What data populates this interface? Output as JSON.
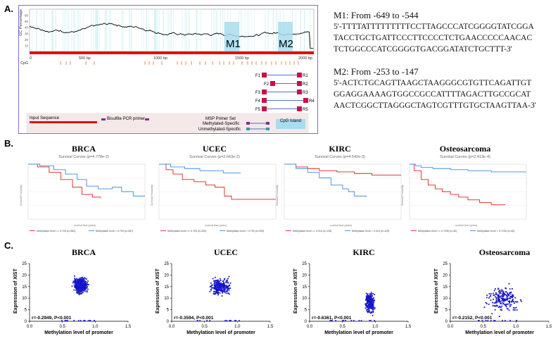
{
  "panelA": {
    "letter": "A.",
    "yaxis_label": "GC Percentage",
    "yticks": [
      "60",
      "50",
      "40",
      "30",
      "20",
      "10"
    ],
    "xticks": [
      "0",
      "500 bp",
      "1000 bp",
      "1500 bp",
      "2000 bp"
    ],
    "cpg_label": "CpG",
    "regions": [
      "M1",
      "M2"
    ],
    "primers": [
      {
        "f": "F1",
        "r": "R1"
      },
      {
        "f": "F2",
        "r": "R2"
      },
      {
        "f": "F3",
        "r": "R3"
      },
      {
        "f": "F4",
        "r": "R4"
      },
      {
        "f": "F5",
        "r": "R5"
      }
    ],
    "legend": {
      "input_sequence": "Input Sequence",
      "bisulfite": "Bisulfite PCR primer",
      "msp": "MSP Primer Set",
      "cpg_island": "CpG Island",
      "methylated": "Methylated-Specific",
      "unmethylated": "Unmethylated-Specific"
    },
    "colors": {
      "frame": "#7b6fd0",
      "gc_line": "#000000",
      "input_bar": "#e01010",
      "cpg_tick": "#e07020",
      "island": "#a8dcef",
      "primer": "#c8104a",
      "primer_line": "#2040c0"
    }
  },
  "sequences": [
    {
      "title": "M1: From -649 to -544",
      "lines": [
        "5'-TTTTATTTTTTTTTCCTTAGCCCATCGGGGTATCGGA",
        "TACCTGCTGATTCCCTTCCCCTCTGAACCCCCAACAC",
        "TCTGGCCCATCGGGGTGACGGATATCTGCTTT-3'"
      ]
    },
    {
      "title": "M2: From -253 to -147",
      "lines": [
        "5'-ACTCTGCAGTTAAGCTAAGGGCGTGTTCAGATTGT",
        "GGAGGAAAAGTGGCCGCCATTTTAGACTTGCCGCAT",
        "AACTCGGCTTAGGGCTAGTCGTTTGTGCTAAGTTAA-3'"
      ]
    }
  ],
  "panelB": {
    "letter": "B.",
    "y_label": "Survival Probability",
    "x_label": "survival time (years)",
    "series_colors": [
      "#e02020",
      "#3a8ee0"
    ],
    "plots": [
      {
        "title": "BRCA",
        "subtitle": "Survival Curves (p=4.778e-2)",
        "legend": [
          "Methylation level >= 0.793 (n=383)",
          "Methylation level < 0.793 (n=387)"
        ]
      },
      {
        "title": "UCEC",
        "subtitle": "Survival Curves (p=2.663e-2)",
        "legend": [
          "Methylation level >= 0.753 (n=200)",
          "Methylation level < 0.753 (n=205)"
        ]
      },
      {
        "title": "KIRC",
        "subtitle": "Survival Curves (p=4.542e-3)",
        "legend": [
          "Methylation level >= 0.914 (n=135)",
          "Methylation level < 0.914 (n=129)"
        ]
      },
      {
        "title": "Osteosarcoma",
        "subtitle": "Survival Curves (p=2.413e-4)",
        "legend": [
          "Methylation level >= 0.7235 (n=40)",
          "Methylation level < 0.7235 (n=40)"
        ]
      }
    ]
  },
  "panelC": {
    "letter": "C.",
    "ylabel": "Expression of XIST",
    "xlabel": "Methylation level of promoter",
    "yticks": [
      "0",
      "5",
      "10",
      "15",
      "20",
      "25"
    ],
    "xticks": [
      "0.0",
      "0.5",
      "1.0",
      "1.5"
    ],
    "point_color": "#1515c8",
    "plots": [
      {
        "title": "BRCA",
        "stat": "r=-0.2949, P<0.001"
      },
      {
        "title": "UCEC",
        "stat": "r=-0.3594, P<0.001"
      },
      {
        "title": "KIRC",
        "stat": "r=-0.6361, P<0.001"
      },
      {
        "title": "Osteosarcoma",
        "stat": "r=-0.2152, P<0.001"
      }
    ]
  }
}
